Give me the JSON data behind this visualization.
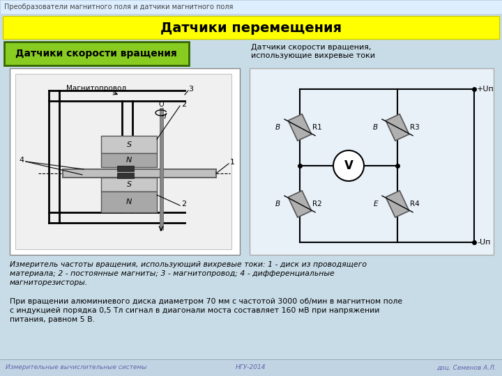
{
  "bg_color": "#c8dce8",
  "title_bar_color": "#ffff00",
  "title_bar_text": "Датчики перемещения",
  "header_text": "Преобразователи магнитного поля и датчики магнитного поля",
  "header_text_color": "#444444",
  "subtitle_box_color": "#88cc22",
  "subtitle_box_border": "#336600",
  "subtitle_text": "Датчики скорости вращения",
  "right_label_line1": "Датчики скорости вращения,",
  "right_label_line2": "использующие вихревые токи",
  "caption_italic": "Измеритель частоты вращения, использующий вихревые токи: 1 - диск из проводящего\nматериала; 2 - постоянные магниты; 3 - магнитопровод; 4 - дифференциальные\nмагниторезисторы.",
  "para_text": "При вращении алюминиевого диска диаметром 70 мм с частотой 3000 об/мин в магнитном поле\nс индукцией порядка 0,5 Тл сигнал в диагонали моста составляет 160 мВ при напряжении\nпитания, равном 5 В.",
  "footer_left": "Измерительные вычислительные системы",
  "footer_center": "НГУ-2014",
  "footer_right": "доц. Семенов А.Л.",
  "footer_color": "#6666aa",
  "resistor_color": "#aaaaaa",
  "wire_color": "#000000",
  "diagram_bg": "#ffffff",
  "circuit_bg": "#e8f0f8"
}
